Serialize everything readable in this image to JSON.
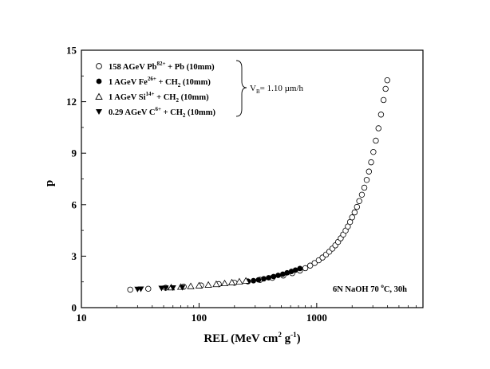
{
  "chart_data": {
    "type": "scatter",
    "xlabel": "REL (MeV cm² g⁻¹)",
    "ylabel": "p",
    "xscale": "log",
    "xlim": [
      10,
      8000
    ],
    "ylim": [
      0,
      15
    ],
    "x_ticks": [
      10,
      100,
      1000
    ],
    "x_tick_labels": [
      "10",
      "100",
      "1000"
    ],
    "y_ticks": [
      0,
      3,
      6,
      9,
      12,
      15
    ],
    "y_tick_labels": [
      "0",
      "3",
      "6",
      "9",
      "12",
      "15"
    ],
    "grid": false,
    "legend_position": "top-left",
    "series": [
      {
        "name": "158 AGeV Pb⁸²⁺ + Pb (10mm)",
        "marker": "open-circle",
        "points": [
          [
            26,
            1.05
          ],
          [
            37,
            1.1
          ],
          [
            52,
            1.16
          ],
          [
            74,
            1.22
          ],
          [
            104,
            1.29
          ],
          [
            147,
            1.37
          ],
          [
            200,
            1.45
          ],
          [
            260,
            1.53
          ],
          [
            330,
            1.62
          ],
          [
            420,
            1.74
          ],
          [
            520,
            1.87
          ],
          [
            620,
            2.01
          ],
          [
            720,
            2.16
          ],
          [
            800,
            2.3
          ],
          [
            880,
            2.45
          ],
          [
            960,
            2.6
          ],
          [
            1040,
            2.76
          ],
          [
            1120,
            2.92
          ],
          [
            1200,
            3.09
          ],
          [
            1280,
            3.26
          ],
          [
            1360,
            3.44
          ],
          [
            1440,
            3.63
          ],
          [
            1520,
            3.83
          ],
          [
            1600,
            4.04
          ],
          [
            1680,
            4.26
          ],
          [
            1760,
            4.49
          ],
          [
            1840,
            4.73
          ],
          [
            1920,
            4.99
          ],
          [
            2000,
            5.26
          ],
          [
            2100,
            5.55
          ],
          [
            2200,
            5.87
          ],
          [
            2300,
            6.21
          ],
          [
            2420,
            6.58
          ],
          [
            2540,
            6.99
          ],
          [
            2660,
            7.44
          ],
          [
            2780,
            7.93
          ],
          [
            2900,
            8.47
          ],
          [
            3030,
            9.07
          ],
          [
            3180,
            9.73
          ],
          [
            3350,
            10.45
          ],
          [
            3520,
            11.25
          ],
          [
            3700,
            12.1
          ],
          [
            3850,
            12.75
          ],
          [
            3980,
            13.25
          ]
        ]
      },
      {
        "name": "1 AGeV Fe²⁶⁺ + CH₂ (10mm)",
        "marker": "filled-circle",
        "points": [
          [
            260,
            1.52
          ],
          [
            290,
            1.57
          ],
          [
            320,
            1.62
          ],
          [
            355,
            1.68
          ],
          [
            390,
            1.74
          ],
          [
            430,
            1.81
          ],
          [
            470,
            1.88
          ],
          [
            515,
            1.95
          ],
          [
            560,
            2.03
          ],
          [
            610,
            2.11
          ],
          [
            660,
            2.19
          ],
          [
            720,
            2.28
          ]
        ]
      },
      {
        "name": "1 AGeV Si¹⁴⁺ + CH₂ (10mm)",
        "marker": "open-triangle-up",
        "points": [
          [
            58,
            1.17
          ],
          [
            70,
            1.2
          ],
          [
            85,
            1.24
          ],
          [
            100,
            1.28
          ],
          [
            120,
            1.32
          ],
          [
            140,
            1.36
          ],
          [
            165,
            1.41
          ],
          [
            190,
            1.46
          ],
          [
            220,
            1.51
          ],
          [
            250,
            1.56
          ]
        ]
      },
      {
        "name": "0.29 AGeV C⁶⁺ + CH₂ (10mm)",
        "marker": "filled-triangle-down",
        "points": [
          [
            30,
            1.08
          ],
          [
            32,
            1.09
          ],
          [
            48,
            1.14
          ],
          [
            52,
            1.15
          ],
          [
            60,
            1.16
          ],
          [
            72,
            1.18
          ]
        ]
      }
    ],
    "annotations": {
      "vb": "= 1.10 µm/h",
      "condition": "6N NaOH 70 °C, 30h"
    }
  }
}
